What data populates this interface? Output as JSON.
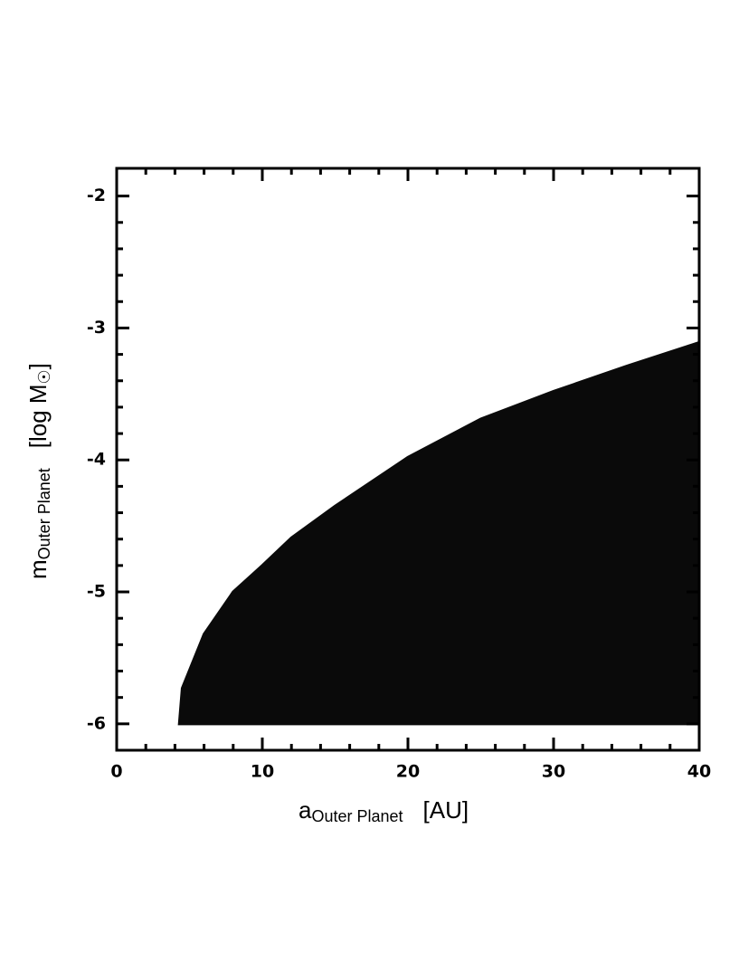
{
  "chart_data": {
    "type": "area",
    "x": [
      4.3,
      4.5,
      6,
      8,
      10,
      12,
      15,
      20,
      25,
      30,
      35,
      40
    ],
    "values": [
      -6.0,
      -5.73,
      -5.32,
      -5.0,
      -4.8,
      -4.59,
      -4.35,
      -3.98,
      -3.69,
      -3.48,
      -3.29,
      -3.11
    ],
    "lower": [
      -6.0,
      -6.0,
      -6.0,
      -6.0,
      -6.0,
      -6.0,
      -6.0,
      -6.0,
      -6.0,
      -6.0,
      -6.0,
      -6.0
    ],
    "color": "#0a0a0a",
    "xlim": [
      0,
      40
    ],
    "ylim": [
      -6.2,
      -1.79
    ],
    "xticks": [
      0,
      10,
      20,
      30,
      40
    ],
    "xminorticks": [
      2,
      4,
      6,
      8,
      12,
      14,
      16,
      18,
      22,
      24,
      26,
      28,
      32,
      34,
      36,
      38
    ],
    "yticks": [
      -6,
      -5,
      -4,
      -3,
      -2
    ],
    "yminorticks": [
      -5.8,
      -5.6,
      -5.4,
      -5.2,
      -4.8,
      -4.6,
      -4.4,
      -4.2,
      -3.8,
      -3.6,
      -3.4,
      -3.2,
      -2.8,
      -2.6,
      -2.4,
      -2.2
    ],
    "xlabel": {
      "symbol": "a",
      "subscript": "Outer Planet",
      "unit": "[AU]"
    },
    "ylabel": {
      "symbol": "m",
      "subscript": "Outer Planet",
      "unit": "[log M",
      "unit_subscript": "☉",
      "unit_end": "]"
    }
  }
}
